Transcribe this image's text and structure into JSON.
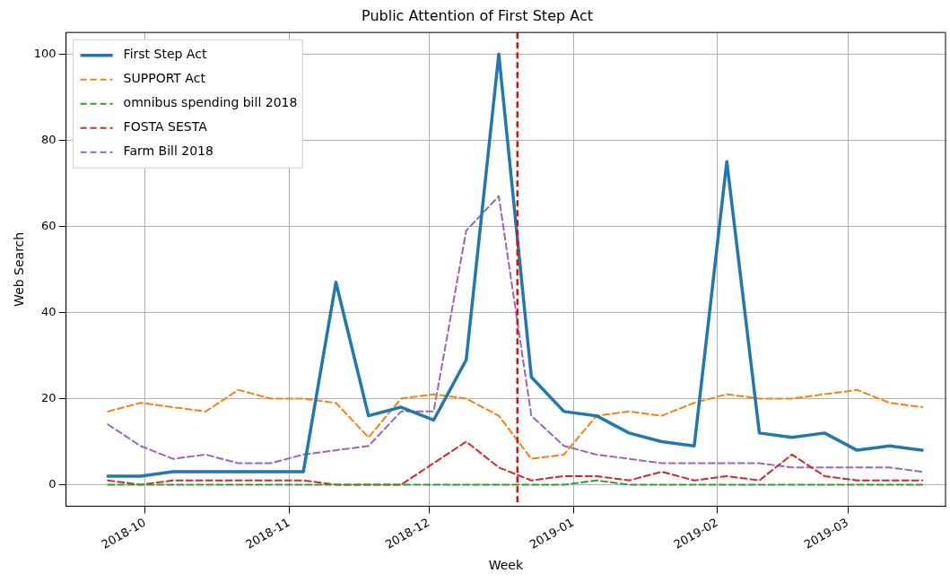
{
  "chart_data": {
    "type": "line",
    "title": "Public Attention of First Step Act",
    "xlabel": "Week",
    "ylabel": "Web Search",
    "x": [
      "2018-09-23",
      "2018-09-30",
      "2018-10-07",
      "2018-10-14",
      "2018-10-21",
      "2018-10-28",
      "2018-11-04",
      "2018-11-11",
      "2018-11-18",
      "2018-11-25",
      "2018-12-02",
      "2018-12-09",
      "2018-12-16",
      "2018-12-23",
      "2018-12-30",
      "2019-01-06",
      "2019-01-13",
      "2019-01-20",
      "2019-01-27",
      "2019-02-03",
      "2019-02-10",
      "2019-02-17",
      "2019-02-24",
      "2019-03-03",
      "2019-03-10",
      "2019-03-17"
    ],
    "series": [
      {
        "name": "First Step Act",
        "color": "#1f77b4",
        "line_style": "solid",
        "values": [
          2,
          2,
          3,
          3,
          3,
          3,
          3,
          47,
          16,
          18,
          15,
          29,
          100,
          25,
          17,
          16,
          12,
          10,
          9,
          75,
          12,
          11,
          12,
          8,
          9,
          8
        ]
      },
      {
        "name": "SUPPORT Act",
        "color": "#ff7f0e",
        "line_style": "dashed",
        "values": [
          17,
          19,
          18,
          17,
          22,
          20,
          20,
          19,
          11,
          20,
          21,
          20,
          16,
          6,
          7,
          16,
          17,
          16,
          19,
          21,
          20,
          20,
          21,
          22,
          19,
          18
        ]
      },
      {
        "name": "omnibus spending bill 2018",
        "color": "#2ca02c",
        "line_style": "dashed",
        "values": [
          0,
          0,
          0,
          0,
          0,
          0,
          0,
          0,
          0,
          0,
          0,
          0,
          0,
          0,
          0,
          1,
          0,
          0,
          0,
          0,
          0,
          0,
          0,
          0,
          0,
          0
        ]
      },
      {
        "name": "FOSTA SESTA",
        "color": "#d62728",
        "line_style": "dashed",
        "values": [
          1,
          0,
          1,
          1,
          1,
          1,
          1,
          0,
          0,
          0,
          5,
          10,
          4,
          1,
          2,
          2,
          1,
          3,
          1,
          2,
          1,
          7,
          2,
          1,
          1,
          1
        ]
      },
      {
        "name": "Farm Bill 2018",
        "color": "#9467bd",
        "line_style": "dashed",
        "values": [
          14,
          9,
          6,
          7,
          5,
          5,
          7,
          8,
          9,
          17,
          17,
          59,
          67,
          16,
          9,
          7,
          6,
          5,
          5,
          5,
          5,
          4,
          4,
          4,
          4,
          3
        ]
      }
    ],
    "xlim": [
      "2018-09-14",
      "2019-03-22"
    ],
    "xticks": [
      "2018-10",
      "2018-11",
      "2018-12",
      "2019-01",
      "2019-02",
      "2019-03"
    ],
    "ylim": [
      -5,
      105
    ],
    "yticks": [
      0,
      20,
      40,
      60,
      80,
      100
    ],
    "ref_lines": [
      {
        "axis": "x",
        "value": "2018-12-20",
        "color": "#ff0000",
        "line_style": "dashed"
      }
    ],
    "grid": true,
    "legend": "top left",
    "marker": "none"
  }
}
